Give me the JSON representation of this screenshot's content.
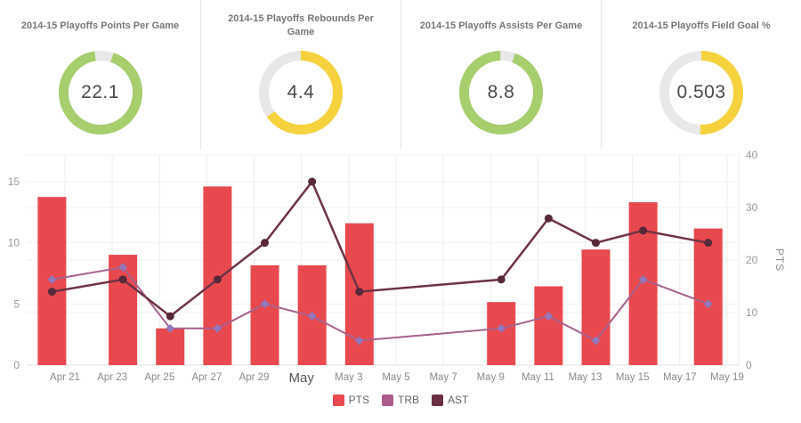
{
  "kpi_cards": [
    {
      "title": "2014-15 Playoffs Points Per Game",
      "value": "22.1",
      "color": "#a6ce6d",
      "track_color": "#e8e8e8",
      "fraction": 0.925,
      "rotation": 18
    },
    {
      "title": "2014-15 Playoffs Rebounds Per Game",
      "value": "4.4",
      "color": "#f5d23d",
      "track_color": "#e8e8e8",
      "fraction": 0.65,
      "rotation": 0
    },
    {
      "title": "2014-15 Playoffs Assists Per Game",
      "value": "8.8",
      "color": "#a6ce6d",
      "track_color": "#e8e8e8",
      "fraction": 0.94,
      "rotation": 20
    },
    {
      "title": "2014-15 Playoffs Field Goal %",
      "value": "0.503",
      "color": "#f5d23d",
      "track_color": "#e8e8e8",
      "fraction": 0.503,
      "rotation": 0
    }
  ],
  "chart_data": {
    "type": "bar+line combo (game log)",
    "title": "",
    "x_ticks": [
      {
        "d": 2,
        "label": "Apr 21"
      },
      {
        "d": 4,
        "label": "Apr 23"
      },
      {
        "d": 6,
        "label": "Apr 25"
      },
      {
        "d": 8,
        "label": "Apr 27"
      },
      {
        "d": 10,
        "label": "Apr 29"
      },
      {
        "d": 12,
        "label": "May",
        "month_start": true
      },
      {
        "d": 14,
        "label": "May 3"
      },
      {
        "d": 16,
        "label": "May 5"
      },
      {
        "d": 18,
        "label": "May 7"
      },
      {
        "d": 20,
        "label": "May 9"
      },
      {
        "d": 22,
        "label": "May 11"
      },
      {
        "d": 24,
        "label": "May 13"
      },
      {
        "d": 26,
        "label": "May 15"
      },
      {
        "d": 28,
        "label": "May 17"
      },
      {
        "d": 30,
        "label": "May 19"
      }
    ],
    "games": [
      {
        "near_tick": "Apr 21",
        "d": 1.45,
        "PTS": 32,
        "TRB": 7,
        "AST": 6
      },
      {
        "near_tick": "Apr 23",
        "d": 4.45,
        "PTS": 21,
        "TRB": 8,
        "AST": 7
      },
      {
        "near_tick": "Apr 25",
        "d": 6.45,
        "PTS": 7,
        "TRB": 3,
        "AST": 4
      },
      {
        "near_tick": "Apr 27",
        "d": 8.45,
        "PTS": 34,
        "TRB": 3,
        "AST": 7
      },
      {
        "near_tick": "Apr 29",
        "d": 10.45,
        "PTS": 19,
        "TRB": 5,
        "AST": 10
      },
      {
        "near_tick": "May 1",
        "d": 12.45,
        "PTS": 19,
        "TRB": 4,
        "AST": 15
      },
      {
        "near_tick": "May 3",
        "d": 14.45,
        "PTS": 27,
        "TRB": 2,
        "AST": 6
      },
      {
        "near_tick": "May 9",
        "d": 20.45,
        "PTS": 12,
        "TRB": 3,
        "AST": 7
      },
      {
        "near_tick": "May 11",
        "d": 22.45,
        "PTS": 15,
        "TRB": 4,
        "AST": 12
      },
      {
        "near_tick": "May 13",
        "d": 24.45,
        "PTS": 22,
        "TRB": 2,
        "AST": 10
      },
      {
        "near_tick": "May 15",
        "d": 26.45,
        "PTS": 31,
        "TRB": 7,
        "AST": 11
      },
      {
        "near_tick": "May 19",
        "d": 29.2,
        "PTS": 26,
        "TRB": 5,
        "AST": 10
      }
    ],
    "series": [
      {
        "name": "PTS",
        "type": "column",
        "axis": "right",
        "field": "PTS",
        "color": "#e8494e"
      },
      {
        "name": "TRB",
        "type": "line",
        "axis": "left",
        "field": "TRB",
        "color": "#a8618d",
        "marker_color": "#9277bd",
        "marker": "diamond"
      },
      {
        "name": "AST",
        "type": "line",
        "axis": "left",
        "field": "AST",
        "color": "#6e3344",
        "marker_color": "#57293a",
        "marker": "circle"
      }
    ],
    "left_axis": {
      "ticks": [
        0,
        5,
        10,
        15
      ],
      "range": [
        0,
        17.2
      ]
    },
    "right_axis": {
      "title": "PTS",
      "ticks": [
        0,
        10,
        20,
        30,
        40
      ],
      "range": [
        0,
        40
      ]
    },
    "legend": [
      {
        "label": "PTS",
        "color": "#e8494e"
      },
      {
        "label": "TRB",
        "color": "#ac5a8a"
      },
      {
        "label": "AST",
        "color": "#6b2f42"
      }
    ],
    "grid": {
      "vertical": true,
      "horizontal": true
    },
    "legend_position": "bottom-center"
  }
}
